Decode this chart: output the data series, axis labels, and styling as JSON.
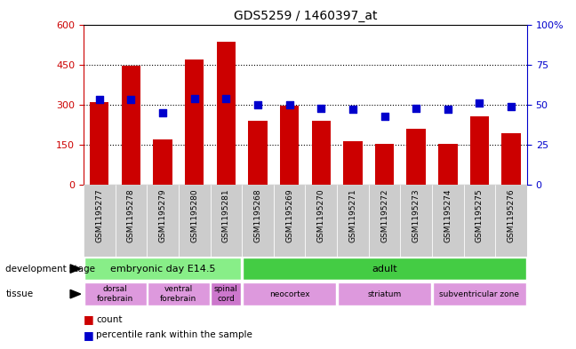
{
  "title": "GDS5259 / 1460397_at",
  "samples": [
    "GSM1195277",
    "GSM1195278",
    "GSM1195279",
    "GSM1195280",
    "GSM1195281",
    "GSM1195268",
    "GSM1195269",
    "GSM1195270",
    "GSM1195271",
    "GSM1195272",
    "GSM1195273",
    "GSM1195274",
    "GSM1195275",
    "GSM1195276"
  ],
  "counts": [
    310,
    445,
    170,
    470,
    535,
    240,
    295,
    240,
    165,
    155,
    210,
    155,
    255,
    195
  ],
  "percentiles": [
    53,
    53,
    45,
    54,
    54,
    50,
    50,
    48,
    47,
    43,
    48,
    47,
    51,
    49
  ],
  "ylim_left": [
    0,
    600
  ],
  "ylim_right": [
    0,
    100
  ],
  "yticks_left": [
    0,
    150,
    300,
    450,
    600
  ],
  "yticks_right": [
    0,
    25,
    50,
    75,
    100
  ],
  "bar_color": "#cc0000",
  "square_color": "#0000cc",
  "bg_color": "#ffffff",
  "left_axis_color": "#cc0000",
  "right_axis_color": "#0000cc",
  "dev_stage_groups": [
    {
      "label": "embryonic day E14.5",
      "start": 0,
      "end": 4,
      "color": "#88ee88"
    },
    {
      "label": "adult",
      "start": 5,
      "end": 13,
      "color": "#44cc44"
    }
  ],
  "tissue_groups": [
    {
      "label": "dorsal\nforebrain",
      "start": 0,
      "end": 1,
      "color": "#dd99dd"
    },
    {
      "label": "ventral\nforebrain",
      "start": 2,
      "end": 3,
      "color": "#dd99dd"
    },
    {
      "label": "spinal\ncord",
      "start": 4,
      "end": 4,
      "color": "#cc77cc"
    },
    {
      "label": "neocortex",
      "start": 5,
      "end": 7,
      "color": "#dd99dd"
    },
    {
      "label": "striatum",
      "start": 8,
      "end": 10,
      "color": "#dd99dd"
    },
    {
      "label": "subventricular zone",
      "start": 11,
      "end": 13,
      "color": "#dd99dd"
    }
  ]
}
